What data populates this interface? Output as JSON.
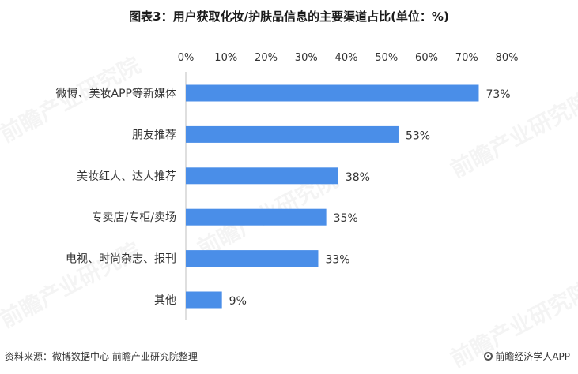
{
  "chart_data": {
    "type": "bar",
    "orientation": "horizontal",
    "title": "图表3：用户获取化妆/护肤品信息的主要渠道占比(单位：%)",
    "categories": [
      "微博、美妆APP等新媒体",
      "朋友推荐",
      "美妆红人、达人推荐",
      "专卖店/专柜/卖场",
      "电视、时尚杂志、报刊",
      "其他"
    ],
    "values": [
      73,
      53,
      38,
      35,
      33,
      9
    ],
    "value_labels": [
      "73%",
      "53%",
      "38%",
      "35%",
      "33%",
      "9%"
    ],
    "x_ticks": [
      "0%",
      "10%",
      "20%",
      "30%",
      "40%",
      "50%",
      "60%",
      "70%",
      "80%"
    ],
    "xlim": [
      0,
      80
    ],
    "x_axis_position": "top",
    "grid": false,
    "bar_color": "#4a8ee8"
  },
  "footer": {
    "source": "资料来源：微博数据中心 前瞻产业研究院整理",
    "brand": "前瞻经济学人APP"
  },
  "watermark": {
    "text": "前瞻产业研究院"
  }
}
